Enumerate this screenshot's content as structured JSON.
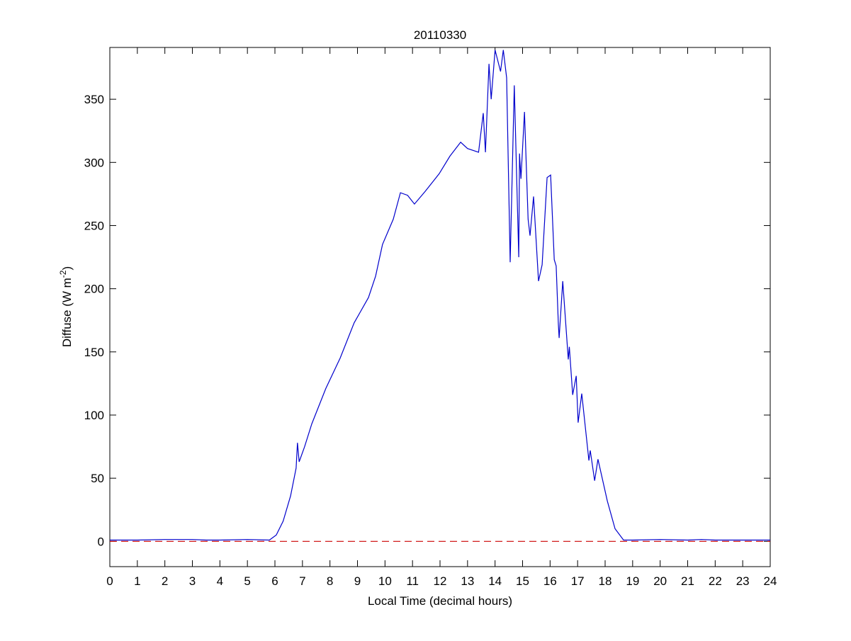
{
  "chart_data": {
    "type": "line",
    "title": "20110330",
    "xlabel": "Local Time (decimal hours)",
    "ylabel": "Diffuse (W m",
    "ylabel_sup": "-2",
    "ylabel_end": ")",
    "xlim": [
      0,
      24
    ],
    "ylim": [
      -20,
      391
    ],
    "xticks": [
      0,
      1,
      2,
      3,
      4,
      5,
      6,
      7,
      8,
      9,
      10,
      11,
      12,
      13,
      14,
      15,
      16,
      17,
      18,
      19,
      20,
      21,
      22,
      23,
      24
    ],
    "yticks": [
      0,
      50,
      100,
      150,
      200,
      250,
      300,
      350
    ],
    "grid": false,
    "series": [
      {
        "color": "#0000cc",
        "style": "solid",
        "points": [
          [
            0,
            1
          ],
          [
            1,
            1
          ],
          [
            2,
            1.5
          ],
          [
            3,
            1.5
          ],
          [
            3.5,
            1
          ],
          [
            4,
            1
          ],
          [
            5,
            1.5
          ],
          [
            5.8,
            1
          ],
          [
            6.05,
            5
          ],
          [
            6.3,
            16
          ],
          [
            6.57,
            36
          ],
          [
            6.77,
            58
          ],
          [
            6.82,
            78
          ],
          [
            6.88,
            63
          ],
          [
            7.08,
            75
          ],
          [
            7.34,
            93
          ],
          [
            7.85,
            121
          ],
          [
            8.37,
            145
          ],
          [
            8.88,
            173
          ],
          [
            9.4,
            193
          ],
          [
            9.66,
            210
          ],
          [
            9.91,
            235
          ],
          [
            10.3,
            255
          ],
          [
            10.56,
            276
          ],
          [
            10.82,
            274
          ],
          [
            11.07,
            267
          ],
          [
            11.46,
            277
          ],
          [
            11.97,
            291
          ],
          [
            12.36,
            305
          ],
          [
            12.75,
            316
          ],
          [
            13.0,
            311
          ],
          [
            13.4,
            308
          ],
          [
            13.57,
            339
          ],
          [
            13.65,
            308
          ],
          [
            13.78,
            378
          ],
          [
            13.86,
            350
          ],
          [
            14.0,
            389
          ],
          [
            14.2,
            372
          ],
          [
            14.3,
            389
          ],
          [
            14.42,
            367
          ],
          [
            14.55,
            221
          ],
          [
            14.7,
            361
          ],
          [
            14.86,
            225
          ],
          [
            14.89,
            307
          ],
          [
            14.94,
            287
          ],
          [
            15.07,
            340
          ],
          [
            15.2,
            255
          ],
          [
            15.27,
            242
          ],
          [
            15.4,
            273
          ],
          [
            15.58,
            206
          ],
          [
            15.71,
            219
          ],
          [
            15.89,
            288
          ],
          [
            16.02,
            290
          ],
          [
            16.15,
            223
          ],
          [
            16.22,
            218
          ],
          [
            16.3,
            172
          ],
          [
            16.33,
            161
          ],
          [
            16.46,
            206
          ],
          [
            16.66,
            144
          ],
          [
            16.7,
            154
          ],
          [
            16.82,
            116
          ],
          [
            16.95,
            131
          ],
          [
            17.02,
            94
          ],
          [
            17.15,
            117
          ],
          [
            17.41,
            64
          ],
          [
            17.46,
            72
          ],
          [
            17.62,
            48
          ],
          [
            17.74,
            65
          ],
          [
            18.08,
            32
          ],
          [
            18.36,
            10
          ],
          [
            18.67,
            1
          ],
          [
            19,
            1
          ],
          [
            20,
            1.5
          ],
          [
            21,
            1
          ],
          [
            21.5,
            1.5
          ],
          [
            22,
            1
          ],
          [
            24,
            1
          ]
        ]
      },
      {
        "color": "#cc0000",
        "style": "dashed",
        "points": [
          [
            0,
            0
          ],
          [
            24,
            0
          ]
        ]
      }
    ]
  }
}
